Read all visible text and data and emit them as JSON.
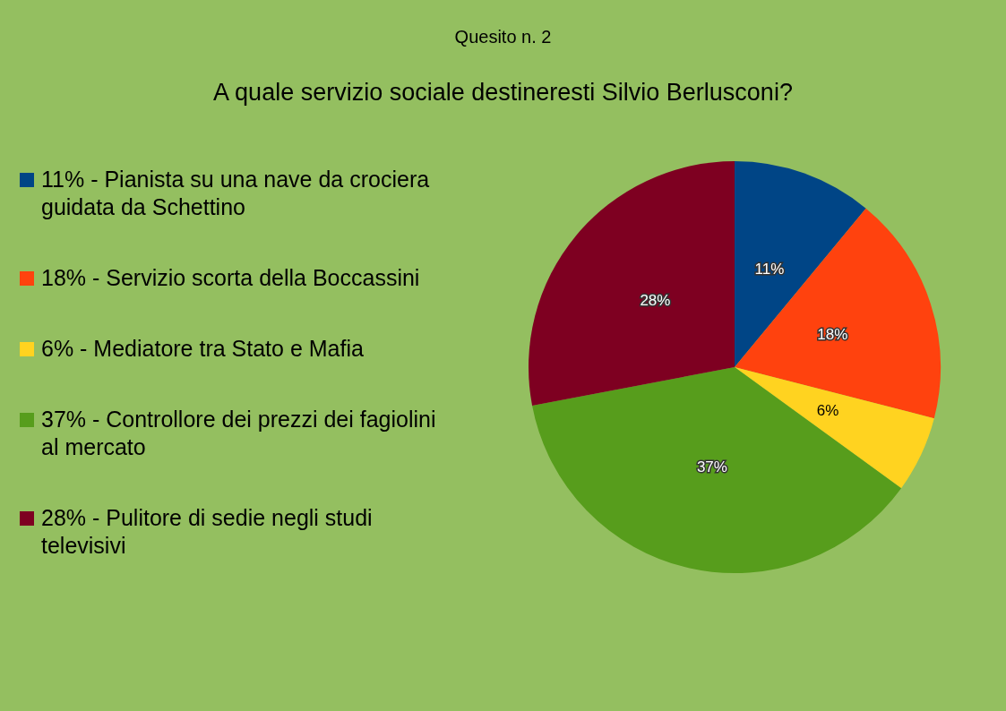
{
  "chart_data": {
    "type": "pie",
    "title": "Quesito n. 2",
    "subtitle": "A quale servizio sociale destineresti Silvio Berlusconi?",
    "categories": [
      "11% - Pianista su una nave da crociera guidata da Schettino",
      "18% - Servizio scorta della Boccassini",
      "6% - Mediatore tra Stato e Mafia",
      "37% - Controllore dei prezzi dei fagiolini al mercato",
      "28% - Pulitore di sedie negli studi televisivi"
    ],
    "values": [
      11,
      18,
      6,
      37,
      28
    ],
    "colors": [
      "#004586",
      "#ff420e",
      "#ffd320",
      "#579d1c",
      "#7e0021"
    ],
    "value_labels": [
      "11%",
      "18%",
      "6%",
      "37%",
      "28%"
    ],
    "legend": "left"
  }
}
